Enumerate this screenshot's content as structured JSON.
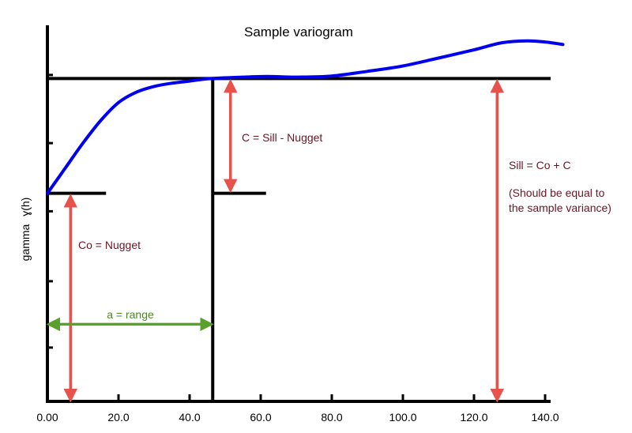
{
  "chart_data": {
    "type": "line",
    "title": "Sample variogram",
    "xlabel": "",
    "ylabel": "gamma",
    "ylabel_symbol": "ɣ(h)",
    "xlim": [
      0,
      145
    ],
    "x_ticks": [
      0,
      20,
      40,
      60,
      80,
      100,
      120,
      140
    ],
    "x_tick_labels": [
      "0.00",
      "20.0",
      "40.0",
      "60.0",
      "80.0",
      "100.0",
      "120.0",
      "140.0"
    ],
    "y_ticks_shown": true,
    "y_tick_labels_shown": false,
    "grid": false,
    "series": [
      {
        "color": "#0000ee",
        "x": [
          0,
          5,
          10,
          15,
          20,
          25,
          30,
          35,
          40,
          46,
          55,
          62,
          70,
          80,
          90,
          100,
          110,
          120,
          128,
          135,
          140,
          145
        ],
        "y": [
          0.58,
          0.65,
          0.72,
          0.783,
          0.833,
          0.862,
          0.878,
          0.887,
          0.893,
          0.9,
          0.904,
          0.906,
          0.904,
          0.907,
          0.92,
          0.935,
          0.957,
          0.98,
          1.0,
          1.005,
          1.002,
          0.995
        ]
      }
    ],
    "reference_lines": {
      "sill": 0.9,
      "nugget": 0.58,
      "range": 46.5
    },
    "annotations": {
      "c_label": "C = Sill - Nugget",
      "sill_label": "Sill = Co + C",
      "sill_note_1": "(Should be equal to",
      "sill_note_2": "the sample variance)",
      "nugget_label": "Co = Nugget",
      "range_label": "a = range"
    },
    "colors": {
      "curve": "#0000ee",
      "arrow": "#e8524a",
      "range_arrow": "#5aa02c",
      "annot_text": "#6b1525",
      "range_text": "#4a8a20",
      "axis": "#000000"
    }
  }
}
